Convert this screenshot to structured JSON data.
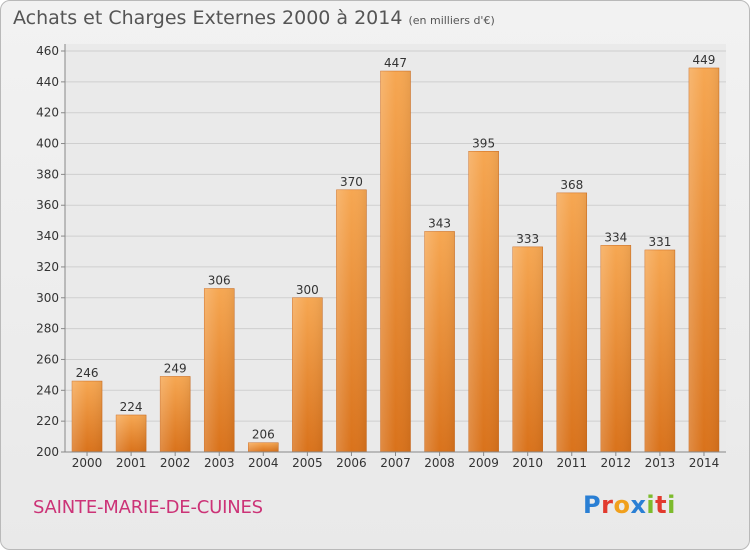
{
  "header": {
    "title": "Achats et Charges Externes 2000 à 2014",
    "subtitle": "(en milliers d'€)"
  },
  "footer": {
    "commune": "SAINTE-MARIE-DE-CUINES",
    "logo_letters": [
      "P",
      "r",
      "o",
      "x",
      "i",
      "t",
      "i"
    ],
    "logo_colors": [
      "#2a7fd4",
      "#e23a2e",
      "#f1a01c",
      "#2a7fd4",
      "#7dbb2c",
      "#e23a2e",
      "#7dbb2c"
    ]
  },
  "chart_data": {
    "type": "bar",
    "title": "Achats et Charges Externes 2000 à 2014",
    "categories": [
      "2000",
      "2001",
      "2002",
      "2003",
      "2004",
      "2005",
      "2006",
      "2007",
      "2008",
      "2009",
      "2010",
      "2011",
      "2012",
      "2013",
      "2014"
    ],
    "values": [
      246,
      224,
      249,
      306,
      206,
      300,
      370,
      447,
      343,
      395,
      333,
      368,
      334,
      331,
      449
    ],
    "ylim": [
      200,
      460
    ],
    "yticks": [
      200,
      220,
      240,
      260,
      280,
      300,
      320,
      340,
      360,
      380,
      400,
      420,
      440,
      460
    ],
    "grid": true,
    "bar_color": "#f08f2c",
    "xlabel": "",
    "ylabel": ""
  }
}
